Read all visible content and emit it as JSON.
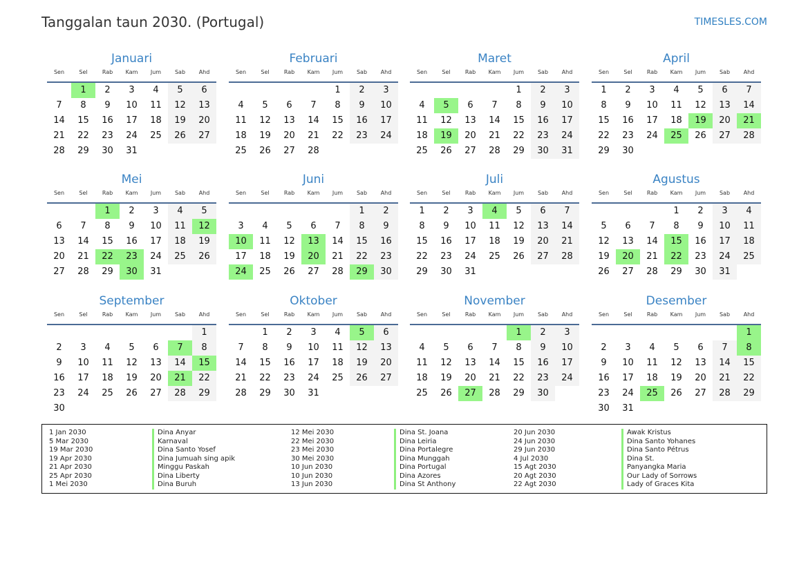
{
  "header": {
    "title": "Tanggalan taun 2030. (Portugal)",
    "brand": "TIMESLES.COM"
  },
  "year": 2030,
  "weekdays": [
    "Sen",
    "Sel",
    "Rab",
    "Kam",
    "Jum",
    "Sab",
    "Ahd"
  ],
  "colors": {
    "holiday": "#98f58a",
    "weekend": "#f3f3f3",
    "accent": "#3a83c4"
  },
  "months": [
    {
      "name": "Januari",
      "holidays": [
        1
      ]
    },
    {
      "name": "Februari",
      "holidays": []
    },
    {
      "name": "Maret",
      "holidays": [
        5,
        19
      ]
    },
    {
      "name": "April",
      "holidays": [
        19,
        21,
        25
      ]
    },
    {
      "name": "Mei",
      "holidays": [
        1,
        12,
        22,
        23,
        30
      ]
    },
    {
      "name": "Juni",
      "holidays": [
        10,
        13,
        20,
        24,
        29
      ]
    },
    {
      "name": "Juli",
      "holidays": [
        4
      ]
    },
    {
      "name": "Agustus",
      "holidays": [
        15,
        20,
        22
      ]
    },
    {
      "name": "September",
      "holidays": [
        7,
        15,
        21
      ]
    },
    {
      "name": "Oktober",
      "holidays": [
        5
      ]
    },
    {
      "name": "November",
      "holidays": [
        1,
        27
      ]
    },
    {
      "name": "Desember",
      "holidays": [
        1,
        8,
        25
      ]
    }
  ],
  "holiday_list": [
    [
      {
        "date": "1 Jan 2030",
        "name": "Dina Anyar"
      },
      {
        "date": "5 Mar 2030",
        "name": "Karnaval"
      },
      {
        "date": "19 Mar 2030",
        "name": "Dina Santo Yosef"
      },
      {
        "date": "19 Apr 2030",
        "name": "Dina Jumuah sing apik"
      },
      {
        "date": "21 Apr 2030",
        "name": "Minggu Paskah"
      },
      {
        "date": "25 Apr 2030",
        "name": "Dina Liberty"
      },
      {
        "date": "1 Mei 2030",
        "name": "Dina Buruh"
      }
    ],
    [
      {
        "date": "12 Mei 2030",
        "name": "Dina St. Joana"
      },
      {
        "date": "22 Mei 2030",
        "name": "Dina Leiria"
      },
      {
        "date": "23 Mei 2030",
        "name": "Dina Portalegre"
      },
      {
        "date": "30 Mei 2030",
        "name": "Dina Munggah"
      },
      {
        "date": "10 Jun 2030",
        "name": "Dina Portugal"
      },
      {
        "date": "10 Jun 2030",
        "name": "Dina Azores"
      },
      {
        "date": "13 Jun 2030",
        "name": "Dina St Anthony"
      }
    ],
    [
      {
        "date": "20 Jun 2030",
        "name": "Awak Kristus"
      },
      {
        "date": "24 Jun 2030",
        "name": "Dina Santo Yohanes"
      },
      {
        "date": "29 Jun 2030",
        "name": "Dina Santo Pétrus"
      },
      {
        "date": "4 Jul 2030",
        "name": "Dina St."
      },
      {
        "date": "15 Agt 2030",
        "name": "Panyangka Maria"
      },
      {
        "date": "20 Agt 2030",
        "name": "Our Lady of Sorrows"
      },
      {
        "date": "22 Agt 2030",
        "name": "Lady of Graces Kita"
      }
    ]
  ]
}
